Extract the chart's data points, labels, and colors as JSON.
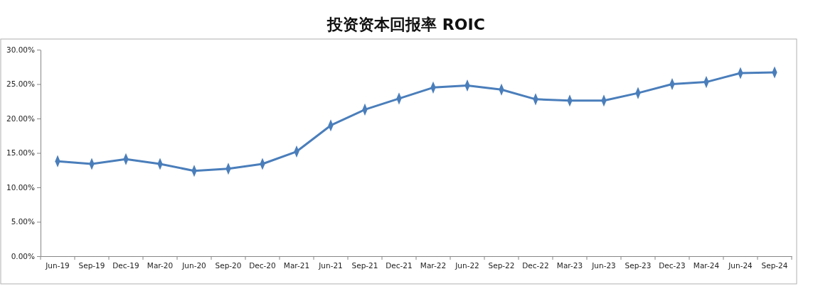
{
  "chart_data": {
    "type": "line",
    "title": "投资资本回报率 ROIC",
    "categories": [
      "Jun-19",
      "Sep-19",
      "Dec-19",
      "Mar-20",
      "Jun-20",
      "Sep-20",
      "Dec-20",
      "Mar-21",
      "Jun-21",
      "Sep-21",
      "Dec-21",
      "Mar-22",
      "Jun-22",
      "Sep-22",
      "Dec-22",
      "Mar-23",
      "Jun-23",
      "Sep-23",
      "Dec-23",
      "Mar-24",
      "Jun-24",
      "Sep-24"
    ],
    "series": [
      {
        "color": "#4a7ebb",
        "values": [
          13.8,
          13.4,
          14.1,
          13.4,
          12.4,
          12.7,
          13.4,
          15.2,
          19.0,
          21.3,
          22.9,
          24.5,
          24.8,
          24.2,
          22.8,
          22.6,
          22.6,
          23.7,
          25.0,
          25.3,
          26.6,
          26.7
        ]
      }
    ],
    "ylim": [
      0,
      30
    ],
    "yticks": [
      {
        "value": 0,
        "label": "0.00%"
      },
      {
        "value": 5,
        "label": "5.00%"
      },
      {
        "value": 10,
        "label": "10.00%"
      },
      {
        "value": 15,
        "label": "15.00%"
      },
      {
        "value": 20,
        "label": "20.00%"
      },
      {
        "value": 25,
        "label": "25.00%"
      },
      {
        "value": 30,
        "label": "30.00%"
      }
    ],
    "grid": false,
    "marker": "diamond",
    "line_style": "solid"
  }
}
